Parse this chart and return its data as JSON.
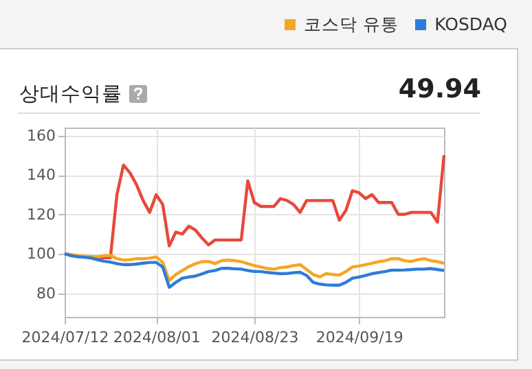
{
  "chart_data": {
    "type": "line",
    "title": "상대수익률",
    "annotations": [
      "49.94"
    ],
    "categories": [
      "2024/07/12",
      null,
      null,
      null,
      null,
      null,
      null,
      null,
      null,
      null,
      null,
      null,
      null,
      null,
      "2024/08/01",
      null,
      null,
      null,
      null,
      null,
      null,
      null,
      null,
      null,
      null,
      null,
      null,
      null,
      null,
      "2024/08/23",
      null,
      null,
      null,
      null,
      null,
      null,
      null,
      null,
      null,
      null,
      null,
      null,
      null,
      null,
      null,
      "2024/09/19",
      null,
      null,
      null,
      null,
      null,
      null,
      null,
      null,
      null,
      null,
      null,
      null,
      null
    ],
    "series": [
      {
        "color": "#e8483b",
        "values": [
          100,
          99.5,
          99,
          98.5,
          98.5,
          98,
          98,
          98,
          130,
          145,
          141,
          135,
          127,
          121,
          130,
          125,
          104,
          111,
          110,
          114,
          112,
          108,
          104.5,
          107,
          107,
          107,
          107,
          107,
          137,
          126,
          124,
          124,
          124,
          128,
          127,
          125,
          121,
          127,
          127,
          127,
          127,
          127,
          117,
          122,
          132,
          131,
          128,
          130,
          126,
          126,
          126,
          120,
          120,
          121,
          121,
          121,
          121,
          116,
          150
        ]
      },
      {
        "name": "코스닥 유통",
        "color": "#f5a623",
        "values": [
          100,
          99.5,
          99,
          98.8,
          98.6,
          98.5,
          99,
          99.2,
          97.5,
          96.8,
          97,
          97.5,
          97.5,
          97.8,
          98.4,
          95.6,
          86.4,
          89.5,
          91.5,
          93.5,
          95,
          96,
          96.1,
          95,
          96.5,
          96.8,
          96.5,
          96,
          95,
          94,
          93.3,
          92.5,
          92.2,
          93,
          93.3,
          94,
          94.5,
          92,
          89.5,
          88.3,
          89.9,
          89.5,
          89.2,
          91,
          93.3,
          93.8,
          94.5,
          95.2,
          96,
          96.5,
          97.5,
          97.5,
          96.5,
          96.1,
          97,
          97.5,
          96.5,
          96,
          95.2
        ]
      },
      {
        "name": "KOSDAQ",
        "color": "#2f7bd8",
        "values": [
          100,
          99,
          98.5,
          98.2,
          97.9,
          97,
          96.2,
          95.8,
          95,
          94.5,
          94.5,
          94.8,
          95.2,
          95.6,
          95.6,
          93.3,
          83,
          85.5,
          87.6,
          88.2,
          88.7,
          89.8,
          91,
          91.5,
          92.6,
          92.6,
          92.4,
          92.2,
          91.5,
          91,
          91,
          90.5,
          90.2,
          89.9,
          90,
          90.4,
          90.6,
          89,
          85.5,
          84.6,
          84.2,
          84.1,
          84.1,
          85.5,
          87.6,
          88.2,
          89,
          89.9,
          90.5,
          91,
          91.7,
          91.7,
          91.8,
          92,
          92.2,
          92.2,
          92.5,
          92,
          91.5
        ]
      }
    ],
    "ylim": [
      68,
      164
    ],
    "yticks": [
      80,
      100,
      120,
      140,
      160
    ],
    "grid": true,
    "legend": "top right"
  }
}
